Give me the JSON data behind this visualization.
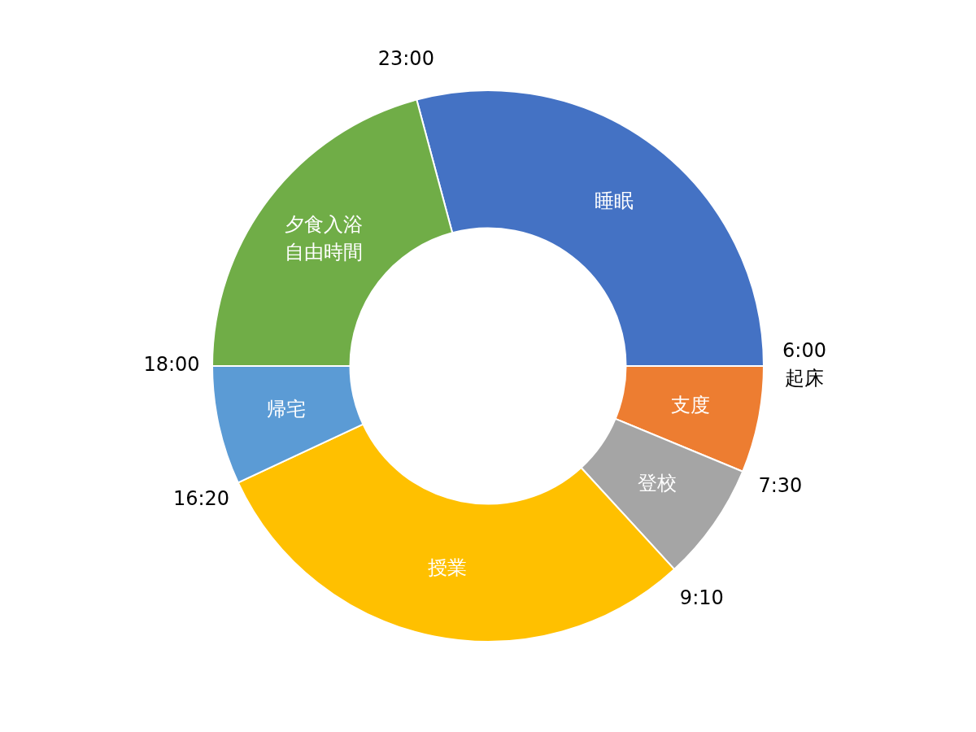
{
  "chart_data": {
    "type": "donut",
    "categories": [
      "睡眠",
      "支度",
      "登校",
      "授業",
      "帰宅",
      "夕食入浴自由時間"
    ],
    "values": [
      29.17,
      6.25,
      6.94,
      29.86,
      6.95,
      20.83
    ],
    "colors": [
      "#4472c4",
      "#ed7d31",
      "#a5a5a5",
      "#ffc000",
      "#5b9bd5",
      "#70ad47"
    ],
    "annotations": [
      "23:00",
      "6:00\n起床",
      "7:30",
      "9:10",
      "16:20",
      "18:00"
    ],
    "legend": false
  }
}
